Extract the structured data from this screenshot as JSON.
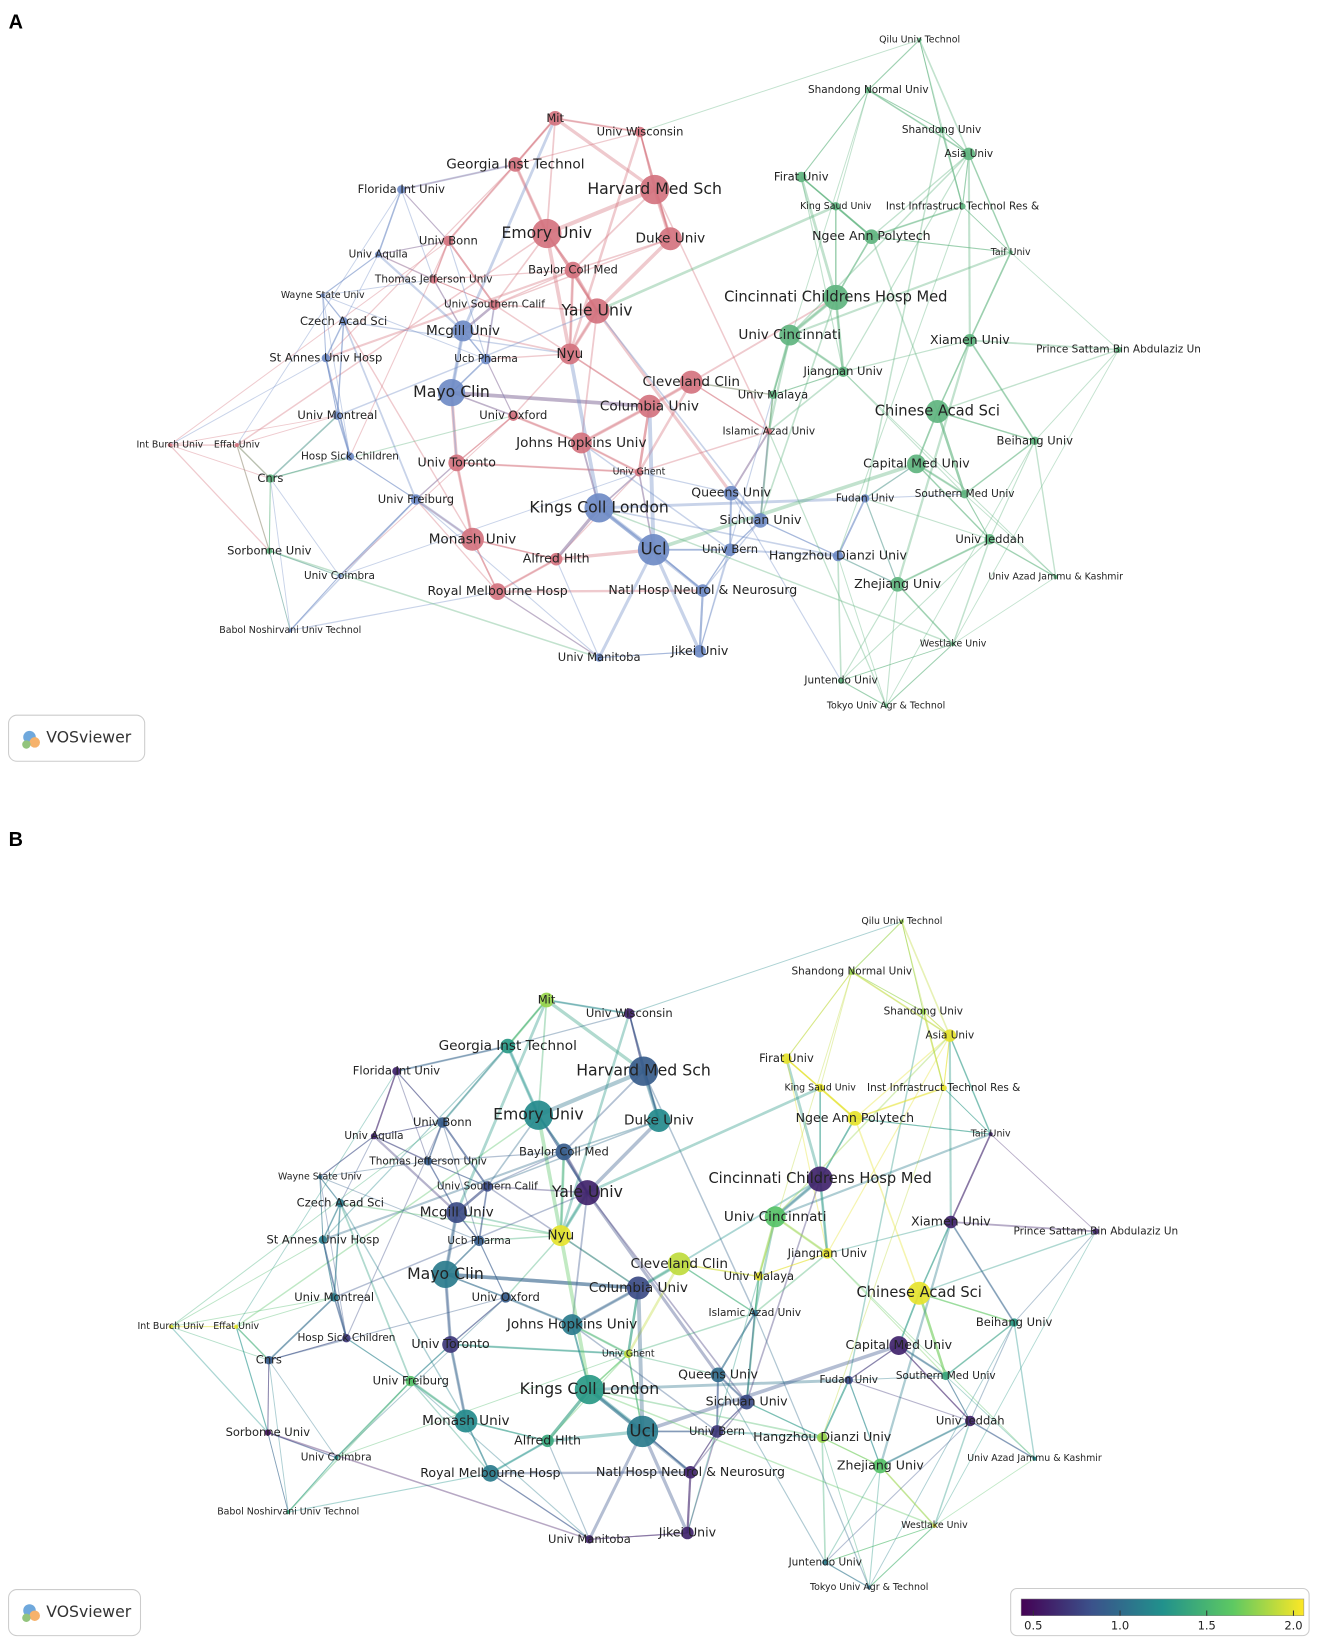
{
  "panels": [
    {
      "letter": "A",
      "logo": "VOSviewer"
    },
    {
      "letter": "B",
      "logo": "VOSviewer",
      "colorbar": {
        "lim": [
          0.43,
          2.06
        ],
        "ticks": [
          0.5,
          {
            "value": 1,
            "label": "1.0"
          },
          1.5,
          {
            "value": 2,
            "label": "2.0"
          }
        ]
      }
    }
  ],
  "nodes": [
    {
      "label": "Mit",
      "color": "#d4737f",
      "score": 1.8
    },
    {
      "label": "Univ Wisconsin",
      "color": "#d4737f",
      "score": 0.6
    },
    {
      "label": "Georgia Inst Technol",
      "color": "#d4737f",
      "score": 1.3
    },
    {
      "label": "Harvard Med Sch",
      "color": "#d4737f",
      "score": 0.9
    },
    {
      "label": "Emory Univ",
      "color": "#d4737f",
      "score": 1.2
    },
    {
      "label": "Duke Univ",
      "color": "#d4737f",
      "score": 1.2
    },
    {
      "label": "Univ Bonn",
      "color": "#d4737f",
      "score": 0.9
    },
    {
      "label": "Baylor Coll Med",
      "color": "#d4737f",
      "score": 0.9
    },
    {
      "label": "Thomas Jefferson Univ",
      "color": "#d4737f",
      "score": 0.9
    },
    {
      "label": "Univ Southern Calif",
      "color": "#d4737f",
      "score": 0.8
    },
    {
      "label": "Yale Univ",
      "color": "#d4737f",
      "score": 0.6
    },
    {
      "label": "Nyu",
      "color": "#d4737f",
      "score": 2.0
    },
    {
      "label": "Cleveland Clin",
      "color": "#d4737f",
      "score": 1.9
    },
    {
      "label": "Columbia Univ",
      "color": "#d4737f",
      "score": 0.8
    },
    {
      "label": "Univ Oxford",
      "color": "#d4737f",
      "score": 0.9
    },
    {
      "label": "Johns Hopkins Univ",
      "color": "#d4737f",
      "score": 1.1
    },
    {
      "label": "Univ Toronto",
      "color": "#d4737f",
      "score": 0.7
    },
    {
      "label": "Monash Univ",
      "color": "#d4737f",
      "score": 1.2
    },
    {
      "label": "Alfred Hlth",
      "color": "#d4737f",
      "score": 1.4
    },
    {
      "label": "Royal Melbourne Hosp",
      "color": "#d4737f",
      "score": 1.1
    },
    {
      "label": "Int Burch Univ",
      "color": "#d4737f",
      "score": 2.0
    },
    {
      "label": "Effat Univ",
      "color": "#d4737f",
      "score": 2.0
    },
    {
      "label": "Islamic Azad Univ",
      "color": "#d4737f",
      "score": 1.0
    },
    {
      "label": "Univ Ghent",
      "color": "#d4737f",
      "score": 1.9
    },
    {
      "label": "Florida Int Univ",
      "color": "#6f8bc6",
      "score": 0.6
    },
    {
      "label": "Univ Aquila",
      "color": "#6f8bc6",
      "score": 0.6
    },
    {
      "label": "Wayne State Univ",
      "color": "#6f8bc6",
      "score": 1.0
    },
    {
      "label": "Czech Acad Sci",
      "color": "#6f8bc6",
      "score": 1.1
    },
    {
      "label": "Mcgill Univ",
      "color": "#6f8bc6",
      "score": 0.8
    },
    {
      "label": "Ucb Pharma",
      "color": "#6f8bc6",
      "score": 0.9
    },
    {
      "label": "St Annes Univ Hosp",
      "color": "#6f8bc6",
      "score": 1.1
    },
    {
      "label": "Mayo Clin",
      "color": "#6f8bc6",
      "score": 1.1
    },
    {
      "label": "Univ Montreal",
      "color": "#6f8bc6",
      "score": 1.1
    },
    {
      "label": "Hosp Sick Children",
      "color": "#6f8bc6",
      "score": 0.7
    },
    {
      "label": "Univ Freiburg",
      "color": "#6f8bc6",
      "score": 1.6
    },
    {
      "label": "Univ Coimbra",
      "color": "#6f8bc6",
      "score": 1.2
    },
    {
      "label": "Babol Noshirvani Univ Technol",
      "color": "#6f8bc6",
      "score": 1.4
    },
    {
      "label": "Kings Coll London",
      "color": "#6f8bc6",
      "score": 1.3
    },
    {
      "label": "Queens Univ",
      "color": "#6f8bc6",
      "score": 1.0
    },
    {
      "label": "Sichuan Univ",
      "color": "#6f8bc6",
      "score": 0.8
    },
    {
      "label": "Ucl",
      "color": "#6f8bc6",
      "score": 1.1
    },
    {
      "label": "Univ Bern",
      "color": "#6f8bc6",
      "score": 0.7
    },
    {
      "label": "Hangzhou Dianzi Univ",
      "color": "#6f8bc6",
      "score": 1.8
    },
    {
      "label": "Natl Hosp Neurol & Neurosurg",
      "color": "#6f8bc6",
      "score": 0.6
    },
    {
      "label": "Univ Manitoba",
      "color": "#6f8bc6",
      "score": 0.6
    },
    {
      "label": "Jikei Univ",
      "color": "#6f8bc6",
      "score": 0.6
    },
    {
      "label": "Fudan Univ",
      "color": "#6f8bc6",
      "score": 0.8
    },
    {
      "label": "Qilu Univ Technol",
      "color": "#5fb47f",
      "score": 1.8
    },
    {
      "label": "Shandong Normal Univ",
      "color": "#5fb47f",
      "score": 1.8
    },
    {
      "label": "Shandong Univ",
      "color": "#5fb47f",
      "score": 1.8
    },
    {
      "label": "Asia Univ",
      "color": "#5fb47f",
      "score": 2.0
    },
    {
      "label": "Firat Univ",
      "color": "#5fb47f",
      "score": 2.0
    },
    {
      "label": "King Saud Univ",
      "color": "#5fb47f",
      "score": 2.0
    },
    {
      "label": "Inst Infrastruct Technol Res &",
      "color": "#5fb47f",
      "score": 2.0
    },
    {
      "label": "Ngee Ann Polytech",
      "color": "#5fb47f",
      "score": 2.0
    },
    {
      "label": "Taif Univ",
      "color": "#5fb47f",
      "score": 0.6
    },
    {
      "label": "Cincinnati Childrens Hosp Med",
      "color": "#5fb47f",
      "score": 0.6
    },
    {
      "label": "Univ Cincinnati",
      "color": "#5fb47f",
      "score": 1.6
    },
    {
      "label": "Xiamen Univ",
      "color": "#5fb47f",
      "score": 0.6
    },
    {
      "label": "Prince Sattam Bin Abdulaziz Un",
      "color": "#5fb47f",
      "score": 0.6
    },
    {
      "label": "Jiangnan Univ",
      "color": "#5fb47f",
      "score": 2.0
    },
    {
      "label": "Univ Malaya",
      "color": "#5fb47f",
      "score": 2.0
    },
    {
      "label": "Chinese Acad Sci",
      "color": "#5fb47f",
      "score": 2.0
    },
    {
      "label": "Beihang Univ",
      "color": "#5fb47f",
      "score": 1.3
    },
    {
      "label": "Capital Med Univ",
      "color": "#5fb47f",
      "score": 0.6
    },
    {
      "label": "Southern Med Univ",
      "color": "#5fb47f",
      "score": 1.4
    },
    {
      "label": "Cnrs",
      "color": "#5fb47f",
      "score": 0.9
    },
    {
      "label": "Sorbonne Univ",
      "color": "#5fb47f",
      "score": 0.5
    },
    {
      "label": "Univ Jeddah",
      "color": "#5fb47f",
      "score": 0.6
    },
    {
      "label": "Univ Azad Jammu & Kashmir",
      "color": "#5fb47f",
      "score": 1.2
    },
    {
      "label": "Zhejiang Univ",
      "color": "#5fb47f",
      "score": 1.6
    },
    {
      "label": "Westlake Univ",
      "color": "#5fb47f",
      "score": 2.0
    },
    {
      "label": "Juntendo Univ",
      "color": "#5fb47f",
      "score": 1.1
    },
    {
      "label": "Tokyo Univ Agr & Technol",
      "color": "#5fb47f",
      "score": 1.0
    }
  ]
}
